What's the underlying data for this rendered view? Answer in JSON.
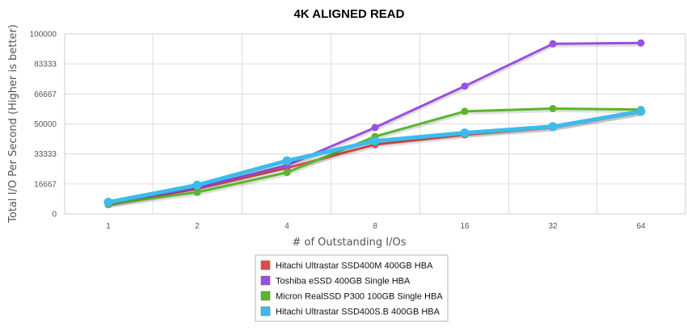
{
  "chart_data": {
    "type": "line",
    "title": "4K ALIGNED READ",
    "xlabel": "# of Outstanding I/Os",
    "ylabel": "Total I/O Per Second (Higher is better)",
    "categories": [
      "1",
      "2",
      "4",
      "8",
      "16",
      "32",
      "64"
    ],
    "y_ticks": [
      "0",
      "16667",
      "33333",
      "50000",
      "66667",
      "83333",
      "100000"
    ],
    "ylim": [
      0,
      100000
    ],
    "grid": true,
    "legend_position": "bottom-center",
    "series": [
      {
        "name": "Hitachi Ultrastar SSD400M 400GB HBA",
        "color": "#e04a4a",
        "values": [
          5200,
          14000,
          25500,
          38500,
          44000,
          48000,
          56500
        ]
      },
      {
        "name": "Toshiba eSSD 400GB Single HBA",
        "color": "#9a4fe0",
        "values": [
          6000,
          14500,
          27000,
          48000,
          71000,
          94500,
          95000
        ]
      },
      {
        "name": "Micron RealSSD P300 100GB Single HBA",
        "color": "#5ab52c",
        "values": [
          5500,
          12000,
          23000,
          43000,
          57000,
          58500,
          58000
        ]
      },
      {
        "name": "Hitachi Ultrastar SSD400S.B 400GB HBA",
        "color": "#3bbcec",
        "values": [
          6500,
          16000,
          29500,
          40500,
          45000,
          48500,
          57000
        ]
      }
    ]
  }
}
